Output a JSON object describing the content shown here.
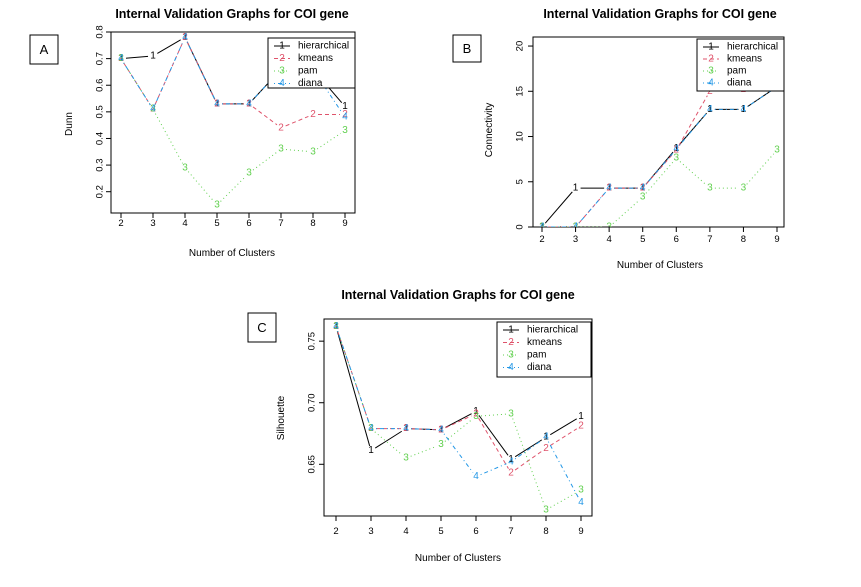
{
  "chart_data": [
    {
      "panel": "A",
      "type": "line",
      "title": "Internal Validation Graphs for COI gene",
      "xlabel": "Number of Clusters",
      "ylabel": "Dunn",
      "x": [
        2,
        3,
        4,
        5,
        6,
        7,
        8,
        9
      ],
      "xlim": [
        2,
        9
      ],
      "ylim": [
        0.12,
        0.8
      ],
      "yticks": [
        0.2,
        0.3,
        0.4,
        0.5,
        0.6,
        0.7,
        0.8
      ],
      "legend_position": "top-right",
      "series": [
        {
          "name": "hierarchical",
          "marker": "1",
          "color": "#000000",
          "dash": "solid",
          "values": [
            0.7,
            0.71,
            0.78,
            0.53,
            0.53,
            0.66,
            0.66,
            0.52
          ]
        },
        {
          "name": "kmeans",
          "marker": "2",
          "color": "#df536b",
          "dash": "dashed",
          "values": [
            0.7,
            0.51,
            0.78,
            0.53,
            0.53,
            0.44,
            0.49,
            0.49
          ]
        },
        {
          "name": "pam",
          "marker": "3",
          "color": "#61d04f",
          "dash": "dotted",
          "values": [
            0.7,
            0.51,
            0.29,
            0.15,
            0.27,
            0.36,
            0.35,
            0.43
          ]
        },
        {
          "name": "diana",
          "marker": "4",
          "color": "#2297e6",
          "dash": "dotdash",
          "values": [
            0.7,
            0.51,
            0.78,
            0.53,
            0.53,
            0.66,
            0.66,
            0.48
          ]
        }
      ]
    },
    {
      "panel": "B",
      "type": "line",
      "title": "Internal Validation Graphs for COI gene",
      "xlabel": "Number of Clusters",
      "ylabel": "Connectivity",
      "x": [
        2,
        3,
        4,
        5,
        6,
        7,
        8,
        9
      ],
      "xlim": [
        2,
        9
      ],
      "ylim": [
        0,
        21
      ],
      "yticks": [
        0,
        5,
        10,
        15,
        20
      ],
      "legend_position": "top-right",
      "series": [
        {
          "name": "hierarchical",
          "marker": "1",
          "color": "#000000",
          "dash": "solid",
          "values": [
            0,
            4.3,
            4.3,
            4.3,
            8.7,
            13.0,
            13.0,
            15.5
          ]
        },
        {
          "name": "kmeans",
          "marker": "2",
          "color": "#df536b",
          "dash": "dashed",
          "values": [
            0,
            0,
            4.3,
            4.3,
            8.5,
            15.0,
            15.2,
            15.5
          ]
        },
        {
          "name": "pam",
          "marker": "3",
          "color": "#61d04f",
          "dash": "dotted",
          "values": [
            0,
            0,
            0,
            3.3,
            7.6,
            4.3,
            4.3,
            8.5
          ]
        },
        {
          "name": "diana",
          "marker": "4",
          "color": "#2297e6",
          "dash": "dotdash",
          "values": [
            0,
            0,
            4.3,
            4.3,
            8.6,
            13.0,
            13.0,
            15.5
          ]
        }
      ]
    },
    {
      "panel": "C",
      "type": "line",
      "title": "Internal Validation Graphs for COI gene",
      "xlabel": "Number of Clusters",
      "ylabel": "Silhouette",
      "x": [
        2,
        3,
        4,
        5,
        6,
        7,
        8,
        9
      ],
      "xlim": [
        2,
        9
      ],
      "ylim": [
        0.608,
        0.768
      ],
      "yticks": [
        0.65,
        0.7,
        0.75
      ],
      "yticklabels": [
        "0.65",
        "0.70",
        "0.75"
      ],
      "legend_position": "top-right",
      "series": [
        {
          "name": "hierarchical",
          "marker": "1",
          "color": "#000000",
          "dash": "solid",
          "values": [
            0.762,
            0.661,
            0.679,
            0.678,
            0.693,
            0.654,
            0.672,
            0.689
          ]
        },
        {
          "name": "kmeans",
          "marker": "2",
          "color": "#df536b",
          "dash": "dashed",
          "values": [
            0.762,
            0.679,
            0.679,
            0.678,
            0.691,
            0.643,
            0.663,
            0.681
          ]
        },
        {
          "name": "pam",
          "marker": "3",
          "color": "#61d04f",
          "dash": "dotted",
          "values": [
            0.762,
            0.679,
            0.655,
            0.666,
            0.689,
            0.691,
            0.613,
            0.629
          ]
        },
        {
          "name": "diana",
          "marker": "4",
          "color": "#2297e6",
          "dash": "dotdash",
          "values": [
            0.762,
            0.679,
            0.679,
            0.678,
            0.64,
            0.652,
            0.672,
            0.619
          ]
        }
      ]
    }
  ]
}
